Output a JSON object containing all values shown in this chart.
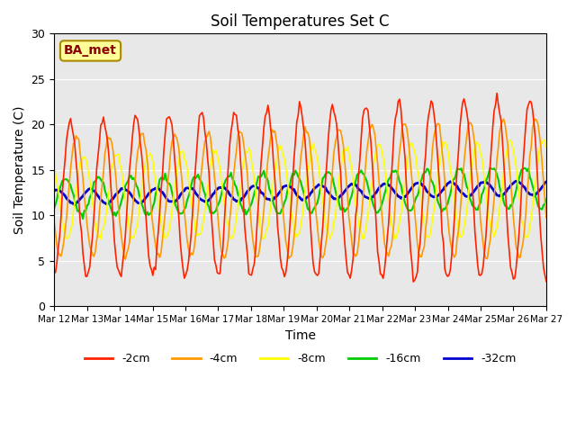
{
  "title": "Soil Temperatures Set C",
  "xlabel": "Time",
  "ylabel": "Soil Temperature (C)",
  "ylim": [
    0,
    30
  ],
  "background_color": "#e8e8e8",
  "annotation_text": "BA_met",
  "annotation_color": "#8b0000",
  "annotation_bg": "#ffff99",
  "series_colors": [
    "#ff2200",
    "#ff9900",
    "#ffff00",
    "#00cc00",
    "#0000cc"
  ],
  "series_labels": [
    "-2cm",
    "-4cm",
    "-8cm",
    "-16cm",
    "-32cm"
  ],
  "series_lw": [
    1.2,
    1.2,
    1.2,
    1.5,
    2.0
  ],
  "x_tick_labels": [
    "Mar 12",
    "Mar 13",
    "Mar 14",
    "Mar 15",
    "Mar 16",
    "Mar 17",
    "Mar 18",
    "Mar 19",
    "Mar 20",
    "Mar 21",
    "Mar 22",
    "Mar 23",
    "Mar 24",
    "Mar 25",
    "Mar 26",
    "Mar 27"
  ],
  "yticks": [
    0,
    5,
    10,
    15,
    20,
    25,
    30
  ],
  "n_days": 15,
  "pts_per_day": 24
}
